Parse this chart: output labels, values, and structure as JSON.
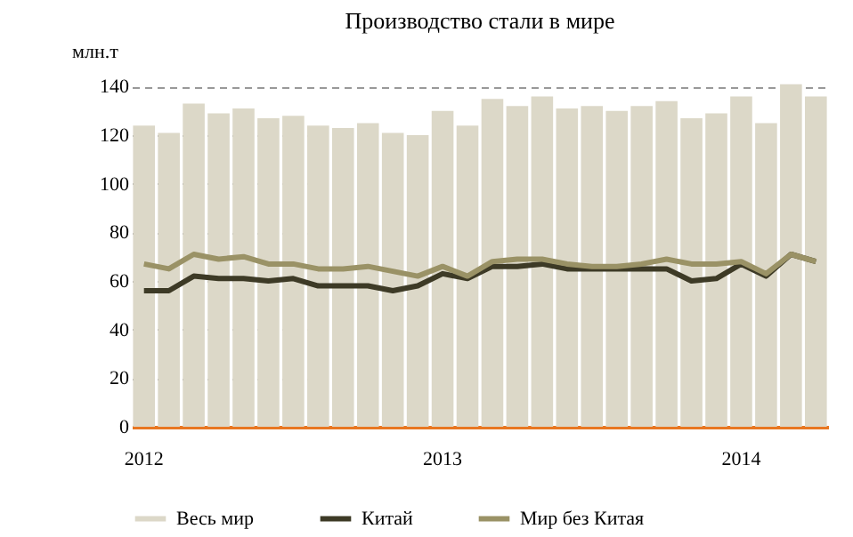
{
  "chart_data": {
    "type": "bar",
    "title": "Производство  стали в мире",
    "ylabel": "млн.т",
    "categories": [
      "2012",
      null,
      null,
      null,
      null,
      null,
      null,
      null,
      null,
      null,
      null,
      null,
      "2013",
      null,
      null,
      null,
      null,
      null,
      null,
      null,
      null,
      null,
      null,
      null,
      "2014",
      null,
      null,
      null
    ],
    "series": [
      {
        "name": "Весь мир",
        "color": "#dcd8c8",
        "values": [
          124,
          121,
          133,
          129,
          131,
          127,
          128,
          124,
          123,
          125,
          121,
          120,
          130,
          124,
          135,
          132,
          136,
          131,
          132,
          130,
          132,
          134,
          127,
          129,
          136,
          125,
          141,
          136
        ]
      },
      {
        "name": "Китай",
        "type": "line",
        "color": "#3d3a26",
        "values": [
          56,
          56,
          62,
          61,
          61,
          60,
          61,
          58,
          58,
          58,
          56,
          58,
          63,
          61,
          66,
          66,
          67,
          65,
          65,
          65,
          65,
          65,
          60,
          61,
          67,
          62,
          71,
          68
        ]
      },
      {
        "name": "Мир без Китая",
        "type": "line",
        "color": "#9a9266",
        "values": [
          67,
          65,
          71,
          69,
          70,
          67,
          67,
          65,
          65,
          66,
          64,
          62,
          66,
          62,
          68,
          69,
          69,
          67,
          66,
          66,
          67,
          69,
          67,
          67,
          68,
          63,
          71,
          68
        ]
      }
    ],
    "ylim": [
      0,
      142
    ],
    "yticks": [
      0,
      20,
      40,
      60,
      80,
      100,
      120,
      140
    ],
    "grid": "y",
    "legend": "bottom"
  }
}
